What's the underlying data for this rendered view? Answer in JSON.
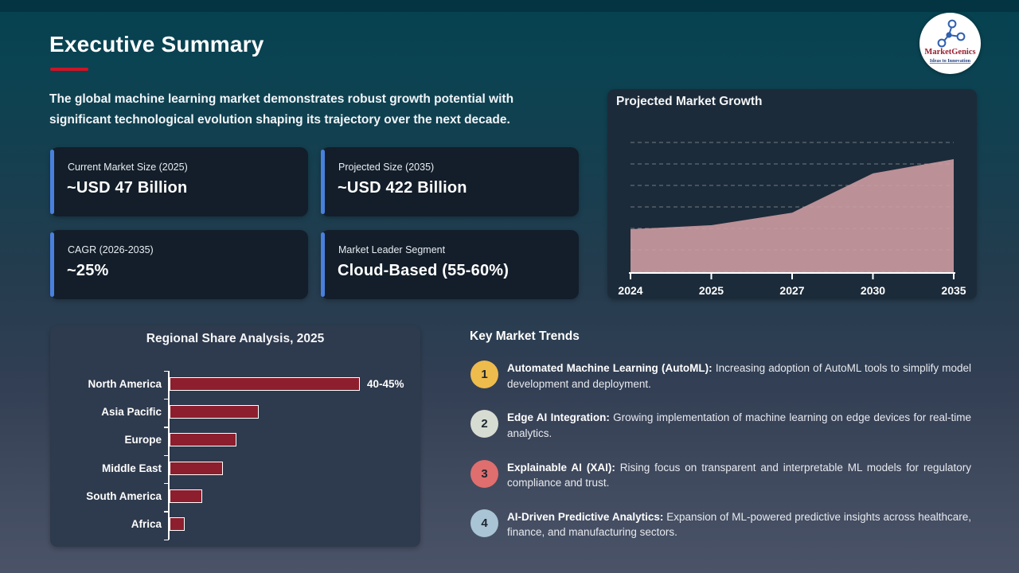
{
  "page": {
    "title": "Executive Summary",
    "intro": "The global machine learning market demonstrates robust growth potential with significant technological evolution shaping its trajectory over the next decade."
  },
  "logo": {
    "brand": "MarketGenics",
    "tagline": "Ideas to Innovation",
    "brand_color": "#9b1f30",
    "tagline_color": "#24407f",
    "icon_color": "#3060b0"
  },
  "stat_cards": [
    {
      "label": "Current Market Size (2025)",
      "value": "~USD 47 Billion"
    },
    {
      "label": "Projected Size (2035)",
      "value": "~USD 422 Billion"
    },
    {
      "label": "CAGR (2026-2035)",
      "value": "~25%"
    },
    {
      "label": "Market Leader Segment",
      "value": "Cloud-Based (55-60%)"
    }
  ],
  "chart_data": [
    {
      "id": "projected-market-growth",
      "type": "area",
      "title": "Projected Market Growth",
      "x": [
        "2024",
        "2025",
        "2027",
        "2030",
        "2035"
      ],
      "values_relative": [
        0.385,
        0.42,
        0.53,
        0.875,
        1.0
      ],
      "y_axis_labeled": false,
      "grid": "horizontal-dashed",
      "fill_color": "#bb9097"
    },
    {
      "id": "regional-share-analysis",
      "type": "bar",
      "orientation": "horizontal",
      "title": "Regional Share Analysis, 2025",
      "categories": [
        "North America",
        "Asia Pacific",
        "Europe",
        "Middle East",
        "South America",
        "Africa"
      ],
      "values_pct": [
        42.5,
        20,
        15,
        12,
        7.3,
        3.4
      ],
      "data_labels": [
        "40-45%",
        "",
        "",
        "",
        "",
        ""
      ],
      "bar_color": "#8c1e2d"
    }
  ],
  "trends": {
    "heading": "Key Market Trends",
    "items": [
      {
        "number": "1",
        "circle_color": "#eebb4d",
        "title": "Automated Machine Learning (AutoML):",
        "description": "Increasing adoption of AutoML tools to simplify model development and deployment."
      },
      {
        "number": "2",
        "circle_color": "#d7dcd2",
        "title": "Edge AI Integration:",
        "description": "Growing implementation of machine learning on edge devices for real-time analytics."
      },
      {
        "number": "3",
        "circle_color": "#df6e6e",
        "title": "Explainable AI (XAI):",
        "description": "Rising focus on transparent and interpretable ML models for regulatory compliance and trust."
      },
      {
        "number": "4",
        "circle_color": "#a9c4d5",
        "title": "AI-Driven Predictive Analytics:",
        "description": "Expansion of ML-powered predictive insights across healthcare, finance, and manufacturing sectors."
      }
    ]
  },
  "colors": {
    "accent_blue": "#4a80dd",
    "underline_red": "#cd1425",
    "bar_maroon": "#8c1e2d",
    "area_pink": "#bb9097"
  }
}
